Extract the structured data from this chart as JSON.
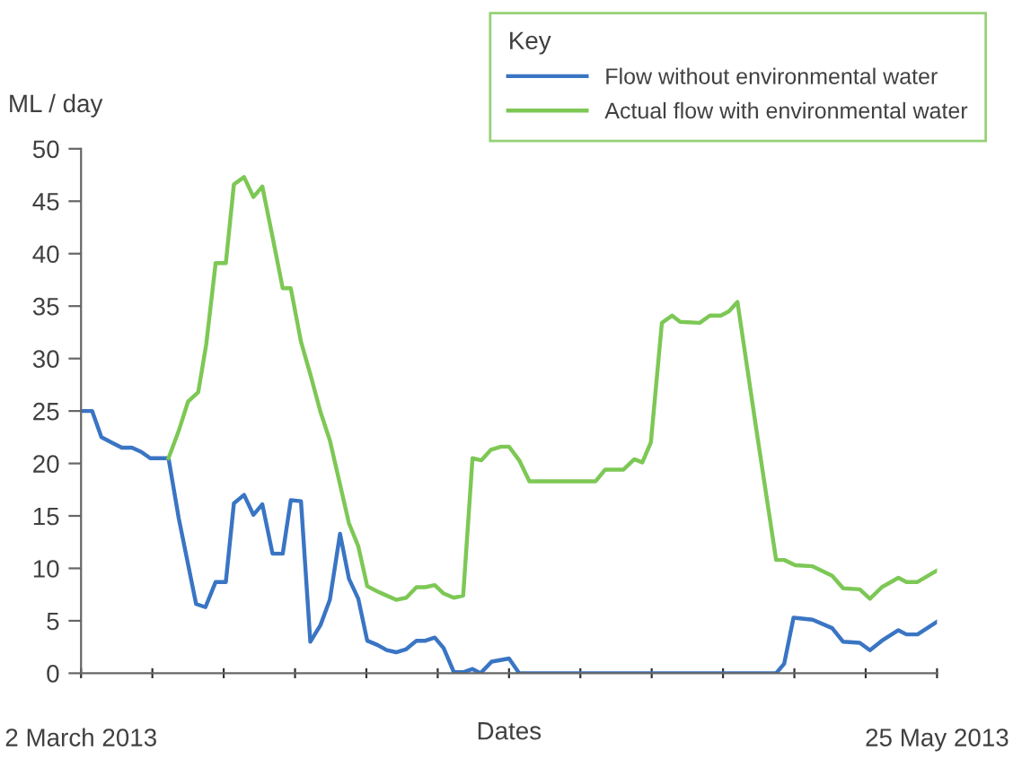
{
  "chart_data": {
    "type": "line",
    "ylabel": "ML / day",
    "xlabel": "Dates",
    "legend_title": "Key",
    "legend": "top right",
    "grid": false,
    "marker": "none",
    "line_style": "solid",
    "xlim": [
      "2013-03-02",
      "2013-05-25"
    ],
    "xticks": [
      {
        "value": "2013-03-02",
        "label": "2 March 2013"
      },
      {
        "value": "2013-03-09",
        "label": null
      },
      {
        "value": "2013-03-16",
        "label": null
      },
      {
        "value": "2013-03-23",
        "label": null
      },
      {
        "value": "2013-03-30",
        "label": null
      },
      {
        "value": "2013-04-06",
        "label": null
      },
      {
        "value": "2013-04-13",
        "label": null
      },
      {
        "value": "2013-04-20",
        "label": null
      },
      {
        "value": "2013-04-27",
        "label": null
      },
      {
        "value": "2013-05-04",
        "label": null
      },
      {
        "value": "2013-05-11",
        "label": null
      },
      {
        "value": "2013-05-18",
        "label": null
      },
      {
        "value": "2013-05-25",
        "label": "25 May 2013"
      }
    ],
    "ylim": [
      0,
      50
    ],
    "yticks": [
      0,
      5,
      10,
      15,
      20,
      25,
      30,
      35,
      40,
      45,
      50
    ],
    "series": [
      {
        "name": "Flow without environmental water",
        "color": "#3a75c4",
        "x": [
          "2013-03-02T00:00",
          "2013-03-03T02:00",
          "2013-03-04T00:00",
          "2013-03-05T00:00",
          "2013-03-06T00:00",
          "2013-03-07T00:00",
          "2013-03-07T22:00",
          "2013-03-08T19:00",
          "2013-03-10T14:00",
          "2013-03-11T14:00",
          "2013-03-13T07:00",
          "2013-03-14T05:00",
          "2013-03-15T05:00",
          "2013-03-16T05:00",
          "2013-03-17T00:00",
          "2013-03-18T00:00",
          "2013-03-18T22:00",
          "2013-03-19T19:00",
          "2013-03-20T19:00",
          "2013-03-21T19:00",
          "2013-03-22T14:00",
          "2013-03-23T14:00",
          "2013-03-24T12:00",
          "2013-03-25T12:00",
          "2013-03-26T10:00",
          "2013-03-27T10:00",
          "2013-03-28T07:00",
          "2013-03-29T05:00",
          "2013-03-30T02:00",
          "2013-03-31T02:00",
          "2013-04-01T00:00",
          "2013-04-01T22:00",
          "2013-04-02T22:00",
          "2013-04-03T22:00",
          "2013-04-04T19:00",
          "2013-04-05T17:00",
          "2013-04-06T14:00",
          "2013-04-07T14:00",
          "2013-04-08T12:00",
          "2013-04-09T10:00",
          "2013-04-10T05:00",
          "2013-04-11T07:00",
          "2013-04-13T00:00",
          "2013-04-14T00:00",
          "2013-05-09T05:00",
          "2013-05-10T00:00",
          "2013-05-10T22:00",
          "2013-05-12T19:00",
          "2013-05-14T17:00",
          "2013-05-15T19:00",
          "2013-05-17T10:00",
          "2013-05-18T10:00",
          "2013-05-19T14:00",
          "2013-05-21T05:00",
          "2013-05-22T00:00",
          "2013-05-23T02:00",
          "2013-05-25T00:00"
        ],
        "values": [
          25,
          25,
          22.5,
          22,
          21.5,
          21.5,
          21.1,
          20.5,
          20.5,
          14.8,
          6.6,
          6.3,
          8.7,
          8.7,
          16.2,
          17,
          15.1,
          16.1,
          11.4,
          11.4,
          16.5,
          16.4,
          3,
          4.6,
          7,
          13.3,
          9,
          7.1,
          3.1,
          2.7,
          2.2,
          2,
          2.3,
          3.1,
          3.1,
          3.4,
          2.4,
          0.1,
          0.1,
          0.4,
          0,
          1.1,
          1.4,
          0,
          0,
          0.9,
          5.3,
          5.1,
          4.3,
          3,
          2.9,
          2.2,
          3.1,
          4.1,
          3.7,
          3.7,
          4.9
        ]
      },
      {
        "name": "Actual flow with environmental water",
        "color": "#7dc855",
        "x": [
          "2013-03-10T14:00",
          "2013-03-11T14:00",
          "2013-03-12T12:00",
          "2013-03-13T12:00",
          "2013-03-14T07:00",
          "2013-03-15T05:00",
          "2013-03-16T05:00",
          "2013-03-17T00:00",
          "2013-03-18T00:00",
          "2013-03-18T22:00",
          "2013-03-19T19:00",
          "2013-03-20T19:00",
          "2013-03-21T19:00",
          "2013-03-22T14:00",
          "2013-03-23T14:00",
          "2013-03-24T12:00",
          "2013-03-25T12:00",
          "2013-03-26T10:00",
          "2013-03-27T10:00",
          "2013-03-28T07:00",
          "2013-03-29T05:00",
          "2013-03-30T02:00",
          "2013-03-31T02:00",
          "2013-04-01T00:00",
          "2013-04-01T22:00",
          "2013-04-02T22:00",
          "2013-04-03T22:00",
          "2013-04-04T19:00",
          "2013-04-05T17:00",
          "2013-04-06T14:00",
          "2013-04-07T14:00",
          "2013-04-08T12:00",
          "2013-04-09T10:00",
          "2013-04-10T07:00",
          "2013-04-11T05:00",
          "2013-04-12T05:00",
          "2013-04-13T00:00",
          "2013-04-14T00:00",
          "2013-04-15T00:00",
          "2013-04-21T12:00",
          "2013-04-22T10:00",
          "2013-04-24T05:00",
          "2013-04-25T07:00",
          "2013-04-26T02:00",
          "2013-04-26T22:00",
          "2013-04-28T00:00",
          "2013-04-29T00:00",
          "2013-04-29T19:00",
          "2013-05-01T17:00",
          "2013-05-02T17:00",
          "2013-05-03T19:00",
          "2013-05-04T14:00",
          "2013-05-05T10:00",
          "2013-05-07T07:00",
          "2013-05-09T05:00",
          "2013-05-10T00:00",
          "2013-05-11T02:00",
          "2013-05-12T19:00",
          "2013-05-14T17:00",
          "2013-05-15T19:00",
          "2013-05-17T10:00",
          "2013-05-18T10:00",
          "2013-05-19T14:00",
          "2013-05-21T05:00",
          "2013-05-22T00:00",
          "2013-05-23T02:00",
          "2013-05-25T00:00"
        ],
        "values": [
          20.5,
          23.1,
          25.9,
          26.8,
          31.4,
          39.1,
          39.1,
          46.6,
          47.3,
          45.4,
          46.4,
          41.6,
          36.7,
          36.7,
          31.6,
          28.5,
          24.9,
          22.2,
          18,
          14.3,
          12.1,
          8.3,
          7.8,
          7.4,
          7,
          7.2,
          8.2,
          8.2,
          8.4,
          7.6,
          7.2,
          7.4,
          20.5,
          20.3,
          21.3,
          21.6,
          21.6,
          20.3,
          18.3,
          18.3,
          19.4,
          19.4,
          20.4,
          20.1,
          22,
          33.4,
          34.1,
          33.5,
          33.4,
          34.1,
          34.1,
          34.5,
          35.4,
          23.1,
          10.8,
          10.8,
          10.3,
          10.2,
          9.3,
          8.1,
          8,
          7.1,
          8.2,
          9.1,
          8.7,
          8.7,
          9.8
        ]
      }
    ]
  }
}
